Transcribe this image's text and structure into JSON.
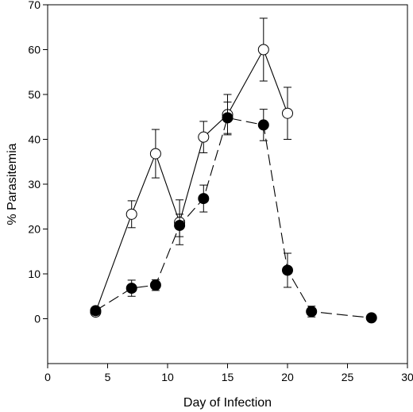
{
  "chart_data": {
    "type": "line",
    "xlabel": "Day of Infection",
    "ylabel": "% Parasitemia",
    "xlim": [
      0,
      30
    ],
    "ylim": [
      -10,
      70
    ],
    "xticks": [
      0,
      5,
      10,
      15,
      20,
      25,
      30
    ],
    "yticks": [
      0,
      10,
      20,
      30,
      40,
      50,
      60,
      70
    ],
    "grid": false,
    "series": [
      {
        "marker": "open-circle",
        "line": "solid",
        "color": "#000000",
        "points": [
          {
            "x": 4,
            "y": 1.5,
            "err": 0.8
          },
          {
            "x": 7,
            "y": 23.3,
            "err": 3.0
          },
          {
            "x": 9,
            "y": 36.8,
            "err": 5.4
          },
          {
            "x": 11,
            "y": 21.5,
            "err": 5.0
          },
          {
            "x": 13,
            "y": 40.5,
            "err": 3.5
          },
          {
            "x": 15,
            "y": 45.5,
            "err": 4.5
          },
          {
            "x": 18,
            "y": 60.0,
            "err": 7.0
          },
          {
            "x": 20,
            "y": 45.8,
            "err": 5.8
          }
        ]
      },
      {
        "marker": "filled-circle",
        "line": "dashed",
        "color": "#000000",
        "points": [
          {
            "x": 4,
            "y": 1.8,
            "err": 0.6
          },
          {
            "x": 7,
            "y": 6.8,
            "err": 1.8
          },
          {
            "x": 9,
            "y": 7.5,
            "err": 1.2
          },
          {
            "x": 11,
            "y": 20.8,
            "err": 2.5
          },
          {
            "x": 13,
            "y": 26.8,
            "err": 3.0
          },
          {
            "x": 15,
            "y": 44.8,
            "err": 3.5
          },
          {
            "x": 18,
            "y": 43.2,
            "err": 3.5
          },
          {
            "x": 20,
            "y": 10.8,
            "err": 3.8
          },
          {
            "x": 22,
            "y": 1.6,
            "err": 1.2
          },
          {
            "x": 27,
            "y": 0.2,
            "err": 0.3
          }
        ]
      }
    ]
  }
}
